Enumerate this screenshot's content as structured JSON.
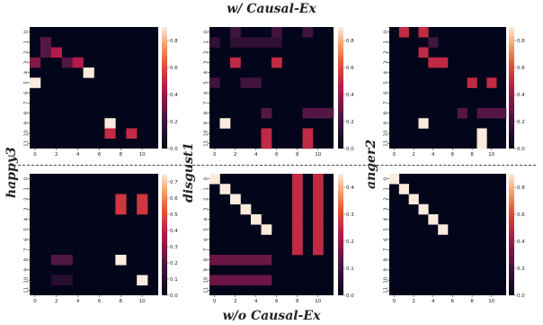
{
  "title_top": "w/ Causal-Ex",
  "title_bottom": "w/o Causal-Ex",
  "row_labels": [
    "happy3",
    "disgust1",
    "anger2"
  ],
  "chart_data": [
    {
      "type": "heatmap",
      "panel": "top-left",
      "size": 12,
      "vmax": 0.9,
      "colorbar_ticks": [
        0.0,
        0.2,
        0.4,
        0.6,
        0.8
      ],
      "x_ticks": [
        "0",
        "2",
        "4",
        "6",
        "8",
        "10"
      ],
      "y_ticks": [
        "0",
        "1",
        "2",
        "3",
        "4",
        "5",
        "6",
        "7",
        "8",
        "9",
        "10",
        "11"
      ],
      "cells": [
        [
          1,
          1,
          0.25
        ],
        [
          2,
          1,
          0.25
        ],
        [
          2,
          2,
          0.45
        ],
        [
          3,
          0,
          0.35
        ],
        [
          3,
          3,
          0.25
        ],
        [
          3,
          4,
          0.45
        ],
        [
          4,
          5,
          0.9
        ],
        [
          5,
          0,
          0.9
        ],
        [
          9,
          7,
          0.9
        ],
        [
          10,
          7,
          0.5
        ],
        [
          10,
          9,
          0.5
        ]
      ]
    },
    {
      "type": "heatmap",
      "panel": "top-middle",
      "size": 12,
      "vmax": 0.9,
      "colorbar_ticks": [
        0.0,
        0.2,
        0.4,
        0.6,
        0.8
      ],
      "x_ticks": [
        "0",
        "2",
        "4",
        "6",
        "8",
        "10"
      ],
      "y_ticks": [
        "0",
        "1",
        "2",
        "3",
        "4",
        "5",
        "6",
        "7",
        "8",
        "9",
        "10",
        "11"
      ],
      "cells": [
        [
          0,
          2,
          0.2
        ],
        [
          0,
          6,
          0.2
        ],
        [
          0,
          9,
          0.2
        ],
        [
          1,
          0,
          0.15
        ],
        [
          1,
          2,
          0.15
        ],
        [
          1,
          3,
          0.15
        ],
        [
          1,
          4,
          0.15
        ],
        [
          1,
          5,
          0.15
        ],
        [
          1,
          6,
          0.15
        ],
        [
          3,
          2,
          0.5
        ],
        [
          3,
          6,
          0.5
        ],
        [
          5,
          0,
          0.2
        ],
        [
          5,
          3,
          0.2
        ],
        [
          5,
          4,
          0.2
        ],
        [
          8,
          5,
          0.25
        ],
        [
          8,
          9,
          0.25
        ],
        [
          8,
          10,
          0.25
        ],
        [
          8,
          11,
          0.25
        ],
        [
          9,
          1,
          0.9
        ],
        [
          10,
          5,
          0.5
        ],
        [
          10,
          9,
          0.5
        ],
        [
          11,
          5,
          0.5
        ],
        [
          11,
          9,
          0.5
        ]
      ]
    },
    {
      "type": "heatmap",
      "panel": "top-right",
      "size": 12,
      "vmax": 0.9,
      "colorbar_ticks": [
        0.0,
        0.2,
        0.4,
        0.6,
        0.8
      ],
      "x_ticks": [
        "0",
        "2",
        "4",
        "6",
        "8",
        "10"
      ],
      "y_ticks": [
        "0",
        "1",
        "2",
        "3",
        "4",
        "5",
        "6",
        "7",
        "8",
        "9",
        "10",
        "11"
      ],
      "cells": [
        [
          0,
          1,
          0.5
        ],
        [
          0,
          3,
          0.5
        ],
        [
          1,
          4,
          0.2
        ],
        [
          2,
          3,
          0.5
        ],
        [
          3,
          4,
          0.5
        ],
        [
          3,
          5,
          0.5
        ],
        [
          5,
          8,
          0.5
        ],
        [
          5,
          10,
          0.5
        ],
        [
          8,
          7,
          0.25
        ],
        [
          8,
          9,
          0.25
        ],
        [
          8,
          10,
          0.25
        ],
        [
          8,
          11,
          0.25
        ],
        [
          9,
          3,
          0.9
        ],
        [
          10,
          9,
          0.9
        ],
        [
          11,
          9,
          0.9
        ]
      ]
    },
    {
      "type": "heatmap",
      "panel": "bottom-left",
      "size": 12,
      "vmax": 0.75,
      "colorbar_ticks": [
        0.0,
        0.1,
        0.2,
        0.3,
        0.4,
        0.5,
        0.6,
        0.7
      ],
      "x_ticks": [
        "0",
        "2",
        "4",
        "6",
        "8",
        "10"
      ],
      "y_ticks": [
        "0",
        "1",
        "2",
        "3",
        "4",
        "5",
        "6",
        "7",
        "8",
        "9",
        "10",
        "11"
      ],
      "cells": [
        [
          2,
          8,
          0.45
        ],
        [
          2,
          10,
          0.45
        ],
        [
          3,
          8,
          0.45
        ],
        [
          3,
          10,
          0.45
        ],
        [
          8,
          2,
          0.2
        ],
        [
          8,
          3,
          0.2
        ],
        [
          8,
          8,
          0.75
        ],
        [
          10,
          2,
          0.1
        ],
        [
          10,
          3,
          0.1
        ],
        [
          10,
          10,
          0.75
        ]
      ]
    },
    {
      "type": "heatmap",
      "panel": "bottom-middle",
      "size": 12,
      "vmax": 0.45,
      "colorbar_ticks": [
        0.0,
        0.1,
        0.2,
        0.3,
        0.4
      ],
      "x_ticks": [
        "0",
        "2",
        "4",
        "6",
        "8",
        "10"
      ],
      "y_ticks": [
        "0",
        "1",
        "2",
        "3",
        "4",
        "5",
        "6",
        "7",
        "8",
        "9",
        "10",
        "11"
      ],
      "cells": [
        [
          0,
          0,
          0.45
        ],
        [
          1,
          1,
          0.45
        ],
        [
          2,
          2,
          0.45
        ],
        [
          3,
          3,
          0.45
        ],
        [
          4,
          4,
          0.45
        ],
        [
          5,
          5,
          0.45
        ],
        [
          0,
          8,
          0.25
        ],
        [
          1,
          8,
          0.25
        ],
        [
          2,
          8,
          0.25
        ],
        [
          3,
          8,
          0.25
        ],
        [
          4,
          8,
          0.25
        ],
        [
          5,
          8,
          0.25
        ],
        [
          6,
          8,
          0.25
        ],
        [
          7,
          8,
          0.25
        ],
        [
          0,
          10,
          0.25
        ],
        [
          1,
          10,
          0.25
        ],
        [
          2,
          10,
          0.25
        ],
        [
          3,
          10,
          0.25
        ],
        [
          4,
          10,
          0.25
        ],
        [
          5,
          10,
          0.25
        ],
        [
          6,
          10,
          0.25
        ],
        [
          7,
          10,
          0.25
        ],
        [
          8,
          0,
          0.15
        ],
        [
          8,
          1,
          0.15
        ],
        [
          8,
          2,
          0.15
        ],
        [
          8,
          3,
          0.15
        ],
        [
          8,
          4,
          0.15
        ],
        [
          8,
          5,
          0.15
        ],
        [
          10,
          0,
          0.15
        ],
        [
          10,
          1,
          0.15
        ],
        [
          10,
          2,
          0.15
        ],
        [
          10,
          3,
          0.15
        ],
        [
          10,
          4,
          0.15
        ],
        [
          10,
          5,
          0.15
        ]
      ]
    },
    {
      "type": "heatmap",
      "panel": "bottom-right",
      "size": 12,
      "vmax": 0.9,
      "colorbar_ticks": [
        0.0,
        0.2,
        0.4,
        0.6,
        0.8
      ],
      "x_ticks": [
        "0",
        "2",
        "4",
        "6",
        "8",
        "10"
      ],
      "y_ticks": [
        "0",
        "1",
        "2",
        "3",
        "4",
        "5",
        "6",
        "7",
        "8",
        "9",
        "10",
        "11"
      ],
      "cells": [
        [
          0,
          0,
          0.9
        ],
        [
          1,
          1,
          0.9
        ],
        [
          2,
          2,
          0.9
        ],
        [
          3,
          3,
          0.9
        ],
        [
          4,
          4,
          0.9
        ],
        [
          5,
          5,
          0.9
        ]
      ]
    }
  ]
}
